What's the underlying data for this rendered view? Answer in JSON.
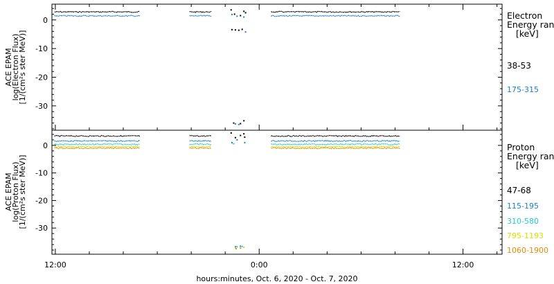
{
  "chart_data": [
    {
      "type": "scatter",
      "panel": "electron",
      "ylabel_lines": [
        "ACE EPAM",
        "log(Electron Flux)",
        "[1/(cm²s ster MeV)]"
      ],
      "ylim": [
        -38.5,
        5.5
      ],
      "yticks": [
        0,
        -10,
        -20,
        -30
      ],
      "legend": {
        "title": "Electron",
        "subtitle": "Energy ran",
        "unit": "[keV]",
        "entries": [
          {
            "label": "38-53",
            "color": "#000000"
          },
          {
            "label": "175-315",
            "color": "#1a7fd0"
          }
        ]
      },
      "series": [
        {
          "name": "38-53",
          "color": "#000000",
          "segments": [
            {
              "x": [
                -0.05,
                5.0
              ],
              "y": 2.8
            },
            {
              "x": [
                7.9,
                9.2
              ],
              "y": 2.8
            },
            {
              "x": [
                12.7,
                20.3
              ],
              "y": 2.8
            }
          ],
          "scatter": [
            [
              10.35,
              3.5
            ],
            [
              10.55,
              2.0
            ],
            [
              10.9,
              1.5
            ],
            [
              11.1,
              3.0
            ],
            [
              11.2,
              2.5
            ],
            [
              10.4,
              -3.4
            ],
            [
              10.6,
              -3.5
            ],
            [
              10.8,
              -3.6
            ],
            [
              11.0,
              -3.3
            ],
            [
              10.5,
              -36.0
            ],
            [
              10.9,
              -36.2
            ],
            [
              11.1,
              -35.2
            ]
          ]
        },
        {
          "name": "175-315",
          "color": "#1a7fd0",
          "segments": [
            {
              "x": [
                -0.05,
                5.0
              ],
              "y": 1.4
            },
            {
              "x": [
                7.9,
                9.2
              ],
              "y": 1.4
            },
            {
              "x": [
                12.7,
                20.3
              ],
              "y": 1.4
            }
          ],
          "scatter": [
            [
              10.4,
              1.9
            ],
            [
              10.7,
              1.3
            ],
            [
              11.1,
              1.0
            ],
            [
              11.2,
              -4.2
            ],
            [
              10.6,
              -36.3
            ],
            [
              10.8,
              -36.5
            ]
          ]
        }
      ]
    },
    {
      "type": "scatter",
      "panel": "proton",
      "ylabel_lines": [
        "ACE EPAM",
        "log(Proton Flux)",
        "[1/(cm²s ster MeV)]"
      ],
      "ylim": [
        -39.5,
        5.5
      ],
      "yticks": [
        0,
        -10,
        -20,
        -30
      ],
      "legend": {
        "title": "Proton",
        "subtitle": "Energy ran",
        "unit": "[keV]",
        "entries": [
          {
            "label": "47-68",
            "color": "#000000"
          },
          {
            "label": "115-195",
            "color": "#1a7fd0"
          },
          {
            "label": "310-580",
            "color": "#27c8d4"
          },
          {
            "label": "795-1193",
            "color": "#d8e000"
          },
          {
            "label": "1060-1900",
            "color": "#e08c00"
          }
        ]
      },
      "series": [
        {
          "name": "47-68",
          "color": "#000000",
          "segments": [
            {
              "x": [
                -0.05,
                5.0
              ],
              "y": 3.4
            },
            {
              "x": [
                7.9,
                9.2
              ],
              "y": 3.4
            },
            {
              "x": [
                12.7,
                20.3
              ],
              "y": 3.4
            }
          ],
          "scatter": [
            [
              10.35,
              4.5
            ],
            [
              10.6,
              2.8
            ],
            [
              10.9,
              3.6
            ],
            [
              11.1,
              4.2
            ],
            [
              11.15,
              3.0
            ]
          ]
        },
        {
          "name": "115-195",
          "color": "#1a7fd0",
          "segments": [
            {
              "x": [
                -0.05,
                5.0
              ],
              "y": 1.6
            },
            {
              "x": [
                7.9,
                9.2
              ],
              "y": 1.6
            },
            {
              "x": [
                12.7,
                20.3
              ],
              "y": 1.6
            }
          ],
          "scatter": [
            [
              10.4,
              1.0
            ],
            [
              10.7,
              2.0
            ],
            [
              11.15,
              1.0
            ],
            [
              10.6,
              -36.8
            ],
            [
              10.9,
              -36.6
            ]
          ]
        },
        {
          "name": "310-580",
          "color": "#27c8d4",
          "segments": [
            {
              "x": [
                -0.05,
                5.0
              ],
              "y": 0.4
            },
            {
              "x": [
                7.9,
                9.2
              ],
              "y": 0.4
            },
            {
              "x": [
                12.7,
                20.3
              ],
              "y": 0.4
            }
          ],
          "scatter": [
            [
              10.5,
              0.6
            ],
            [
              10.7,
              -36.8
            ],
            [
              11.0,
              -36.7
            ]
          ]
        },
        {
          "name": "795-1193",
          "color": "#d8e000",
          "segments": [
            {
              "x": [
                -0.05,
                5.0
              ],
              "y": -0.5
            },
            {
              "x": [
                7.9,
                9.2
              ],
              "y": -0.5
            },
            {
              "x": [
                12.7,
                20.3
              ],
              "y": -0.5
            }
          ],
          "scatter": [
            [
              10.6,
              -37.2
            ],
            [
              11.1,
              -37.0
            ]
          ]
        },
        {
          "name": "1060-1900",
          "color": "#e08c00",
          "segments": [
            {
              "x": [
                -0.05,
                5.0
              ],
              "y": -1.0
            },
            {
              "x": [
                7.9,
                9.2
              ],
              "y": -1.0
            },
            {
              "x": [
                12.7,
                20.3
              ],
              "y": -1.0
            }
          ],
          "scatter": [
            [
              10.65,
              -37.5
            ],
            [
              10.9,
              -37.3
            ]
          ]
        }
      ]
    }
  ],
  "x_axis": {
    "xlim": [
      -0.2,
      26.3
    ],
    "ticks_major": [
      {
        "x": 0,
        "label": "12:00"
      },
      {
        "x": 12,
        "label": "0:00"
      },
      {
        "x": 24,
        "label": "12:00"
      }
    ],
    "title": "hours:minutes, Oct.  6, 2020 - Oct.  7, 2020"
  }
}
